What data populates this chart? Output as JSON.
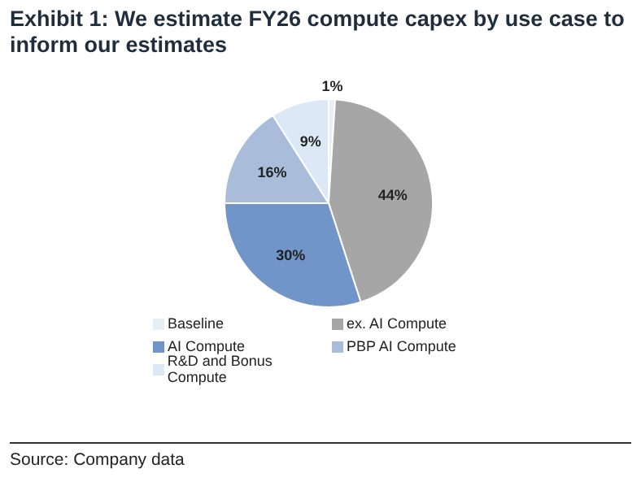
{
  "chart_data": {
    "type": "pie",
    "title": "Exhibit 1: We estimate FY26 compute capex by use case to inform our estimates",
    "categories": [
      "Baseline",
      "ex. AI Compute",
      "AI Compute",
      "PBP AI Compute",
      "R&D and Bonus Compute"
    ],
    "values": [
      1,
      44,
      30,
      16,
      9
    ],
    "colors": [
      "#e8eef6",
      "#a6a6a6",
      "#7195c8",
      "#a9bddb",
      "#dce8f6"
    ],
    "value_labels": [
      "1%",
      "44%",
      "30%",
      "16%",
      "9%"
    ],
    "legend": "bottom",
    "annotations": [
      "Source: Company data"
    ]
  }
}
